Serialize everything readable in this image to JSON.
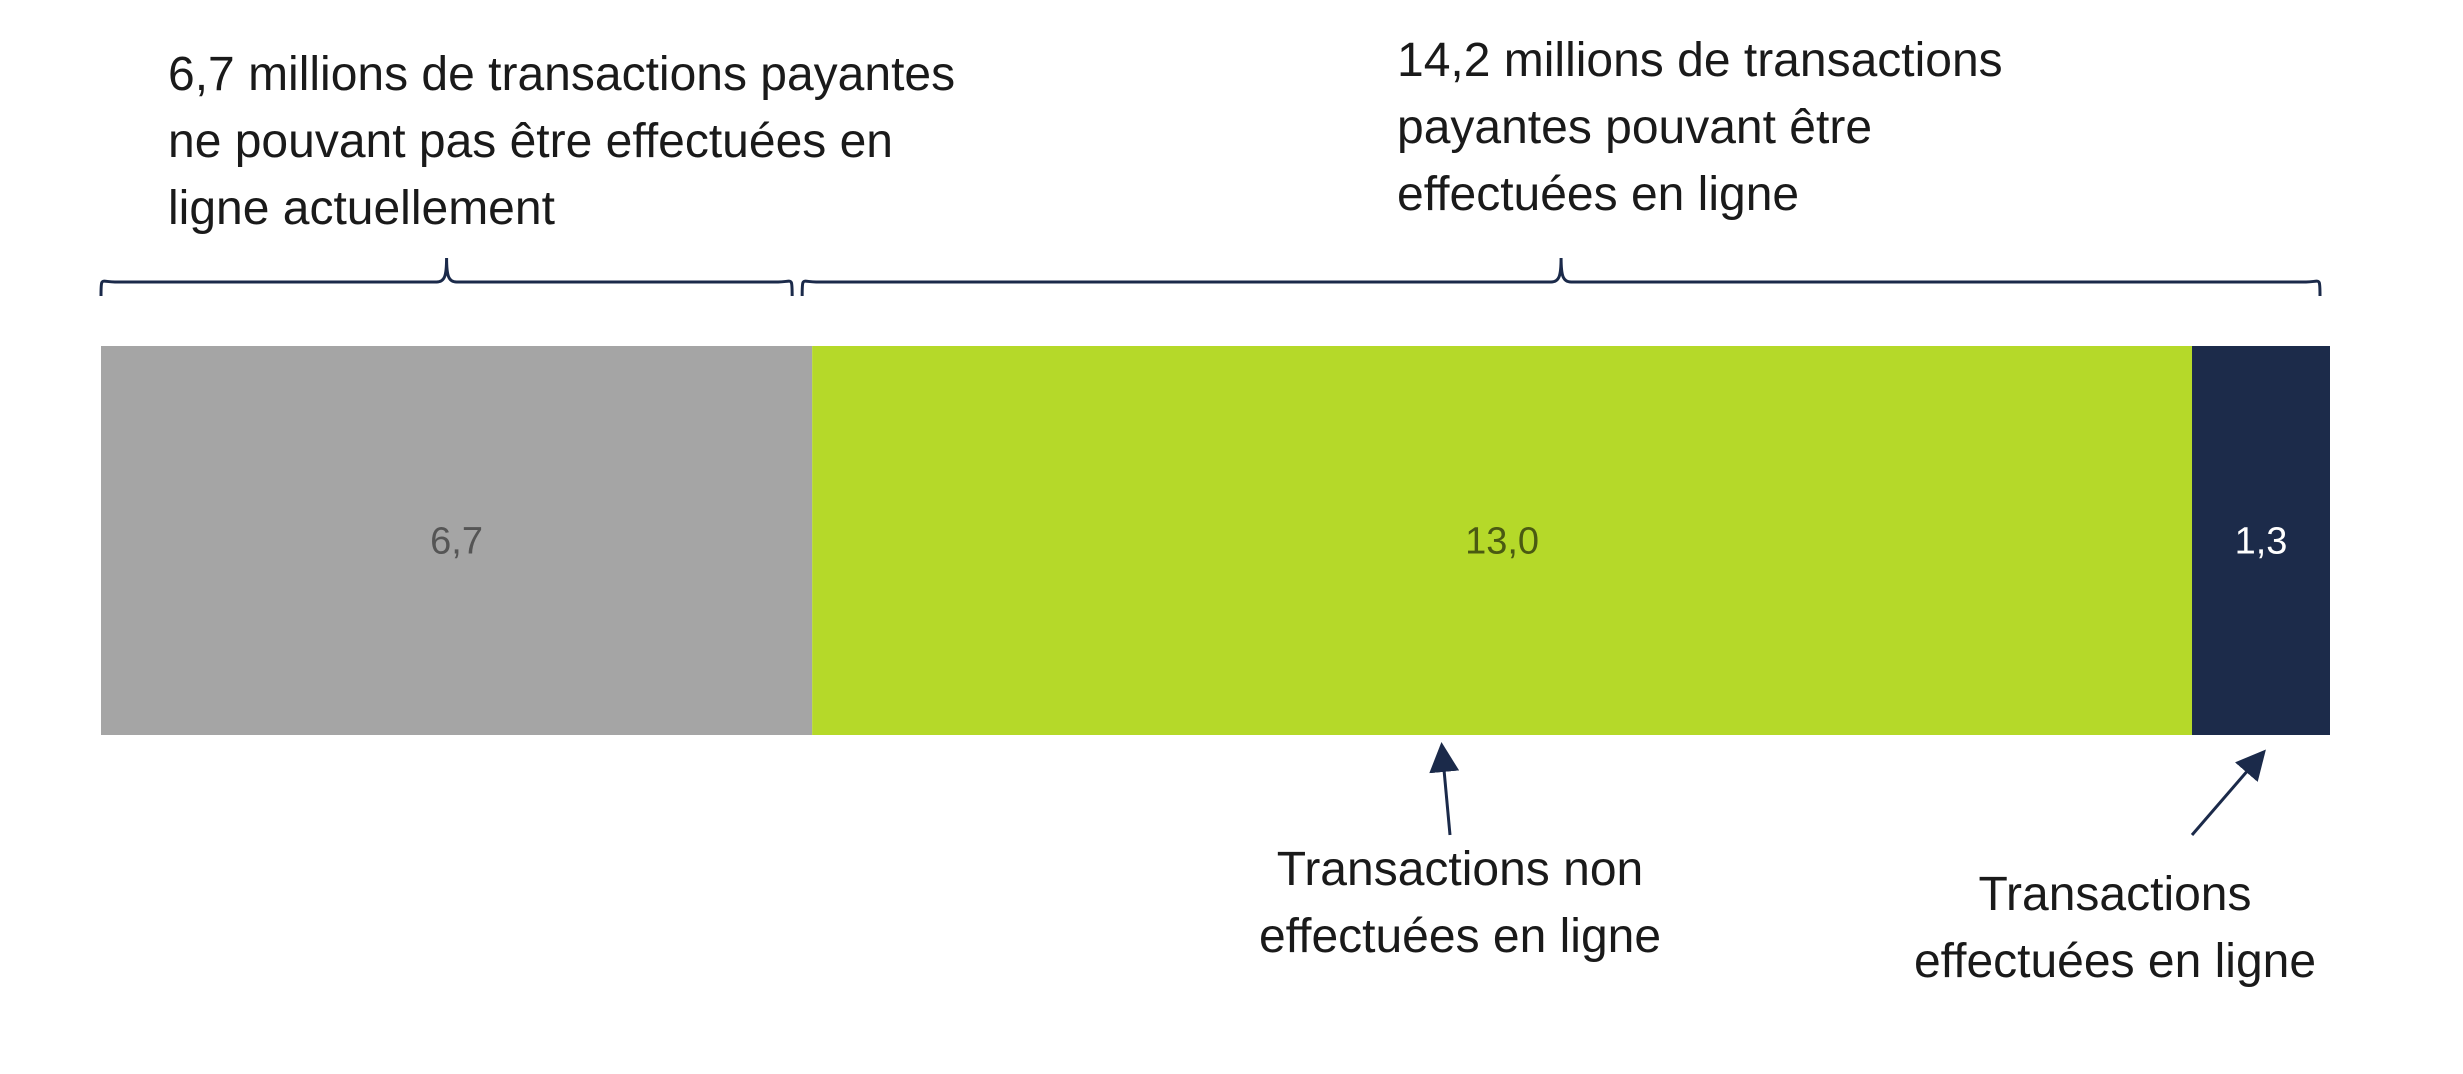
{
  "chart_data": {
    "type": "bar",
    "orientation": "horizontal-stacked",
    "categories": [
      ""
    ],
    "series": [
      {
        "values": [
          6.7
        ],
        "label": "6,7",
        "color": "#a5a5a5",
        "label_color": "#555555"
      },
      {
        "values": [
          13.0
        ],
        "label": "13,0",
        "color": "#b5d929",
        "label_color": "#4a5a12"
      },
      {
        "values": [
          1.3
        ],
        "label": "1,3",
        "color": "#1c2b4a",
        "label_color": "#ffffff"
      }
    ],
    "brackets": [
      {
        "lines": [
          "6,7 millions de transactions payantes",
          "ne pouvant pas être effectuées en",
          "ligne actuellement"
        ],
        "from_series": 0,
        "to_series": 0
      },
      {
        "lines": [
          "14,2 millions de transactions",
          "payantes pouvant être",
          "effectuées en ligne"
        ],
        "from_series": 1,
        "to_series": 2
      }
    ],
    "arrows": [
      {
        "lines": [
          "Transactions non",
          "effectuées en ligne"
        ],
        "series": 1
      },
      {
        "lines": [
          "Transactions",
          "effectuées en ligne"
        ],
        "series": 2
      }
    ],
    "title": "",
    "xlabel": "",
    "ylabel": "",
    "grid": false,
    "legend": "none"
  }
}
